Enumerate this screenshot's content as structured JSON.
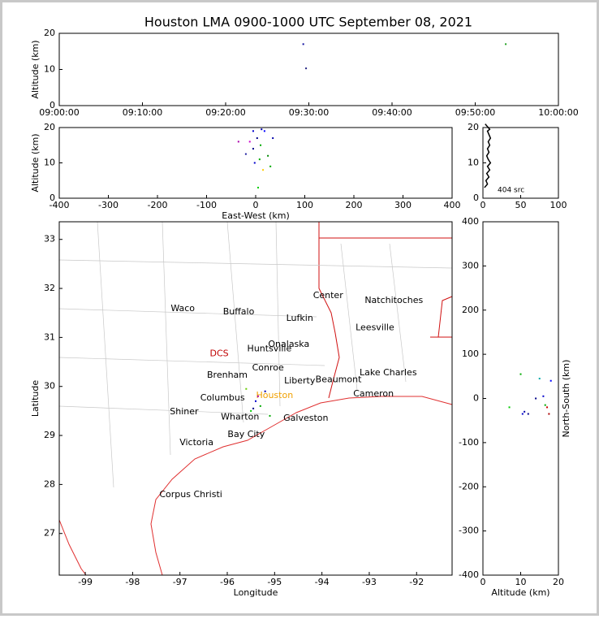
{
  "title": "Houston LMA 0900-1000 UTC September 08, 2021",
  "chart_data": [
    {
      "type": "scatter",
      "ylabel": "Altitude (km)",
      "xlim": [
        "09:00:00",
        "10:00:00"
      ],
      "xticks": [
        "09:00:00",
        "09:10:00",
        "09:20:00",
        "09:30:00",
        "09:40:00",
        "09:50:00",
        "10:00:00"
      ],
      "ylim": [
        0,
        20
      ],
      "yticks": [
        0,
        10,
        20
      ],
      "x": [
        "09:29:20",
        "09:29:40",
        "09:53:40"
      ],
      "values": [
        17,
        10.3,
        17
      ],
      "colors": [
        "#1010a0",
        "#202080",
        "#20a020"
      ]
    },
    {
      "type": "scatter",
      "xlabel": "East-West (km)",
      "ylabel": "Altitude (km)",
      "xlim": [
        -400,
        400
      ],
      "xticks": [
        -400,
        -300,
        -200,
        -100,
        0,
        100,
        200,
        300,
        400
      ],
      "ylim": [
        0,
        20
      ],
      "yticks": [
        0,
        10,
        20
      ],
      "x": [
        -5,
        3,
        -12,
        10,
        18,
        -20,
        -35,
        35,
        30,
        5,
        -5,
        15,
        25,
        -2,
        8,
        12
      ],
      "values": [
        19,
        17,
        16,
        15,
        19,
        12.5,
        16,
        17,
        9,
        3,
        14,
        8,
        12,
        10,
        11,
        19.5
      ],
      "colors": [
        "#0000cc",
        "#000088",
        "#cc00cc",
        "#00aa00",
        "#0000ff",
        "#2020a0",
        "#aa00aa",
        "#0000aa",
        "#00aa00",
        "#00cc00",
        "#000088",
        "#ffcc00",
        "#008800",
        "#0000cc",
        "#00aa00",
        "#0000aa"
      ]
    },
    {
      "type": "line",
      "annotation": "404 src",
      "xlim": [
        0,
        100
      ],
      "xticks": [
        0,
        50,
        100
      ],
      "ylim": [
        0,
        20
      ],
      "yticks": [
        0,
        10,
        20
      ],
      "x": [
        2,
        6,
        4,
        8,
        5,
        9,
        6,
        10,
        7,
        5,
        8,
        6,
        9,
        7,
        10,
        8,
        6,
        9,
        7,
        5,
        3
      ],
      "y": [
        3,
        4,
        5,
        6,
        7,
        8,
        9,
        10,
        11,
        12,
        13,
        14,
        15,
        16,
        17,
        18,
        19,
        19.5,
        20,
        20.5,
        21
      ]
    },
    {
      "type": "map",
      "xlabel": "Longitude",
      "ylabel": "Latitude",
      "xlim": [
        -99.55,
        -91.25
      ],
      "xticks": [
        -99,
        -98,
        -97,
        -96,
        -95,
        -94,
        -93,
        -92
      ],
      "ylim": [
        26.15,
        33.36
      ],
      "yticks": [
        27,
        28,
        29,
        30,
        31,
        32,
        33
      ],
      "cities": [
        {
          "name": "Waco",
          "lon": -96.94,
          "lat": 31.59
        },
        {
          "name": "Buffalo",
          "lon": -95.76,
          "lat": 31.52
        },
        {
          "name": "Center",
          "lon": -93.87,
          "lat": 31.85
        },
        {
          "name": "Natchitoches",
          "lon": -92.48,
          "lat": 31.75
        },
        {
          "name": "Lufkin",
          "lon": -94.47,
          "lat": 31.39
        },
        {
          "name": "Leesville",
          "lon": -92.88,
          "lat": 31.2
        },
        {
          "name": "Huntsville",
          "lon": -95.11,
          "lat": 30.77
        },
        {
          "name": "Onalaska",
          "lon": -94.7,
          "lat": 30.86
        },
        {
          "name": "DCS",
          "lon": -96.17,
          "lat": 30.67
        },
        {
          "name": "Conroe",
          "lon": -95.14,
          "lat": 30.38
        },
        {
          "name": "Brenham",
          "lon": -96.0,
          "lat": 30.23
        },
        {
          "name": "Liberty",
          "lon": -94.47,
          "lat": 30.11
        },
        {
          "name": "Beaumont",
          "lon": -93.65,
          "lat": 30.14
        },
        {
          "name": "Lake Charles",
          "lon": -92.6,
          "lat": 30.28
        },
        {
          "name": "Cameron",
          "lon": -92.91,
          "lat": 29.85
        },
        {
          "name": "Columbus",
          "lon": -96.1,
          "lat": 29.76
        },
        {
          "name": "Houston",
          "lon": -95.0,
          "lat": 29.81
        },
        {
          "name": "Shiner",
          "lon": -96.91,
          "lat": 29.48
        },
        {
          "name": "Wharton",
          "lon": -95.73,
          "lat": 29.37
        },
        {
          "name": "Galveston",
          "lon": -94.34,
          "lat": 29.35
        },
        {
          "name": "Bay City",
          "lon": -95.6,
          "lat": 29.02
        },
        {
          "name": "Victoria",
          "lon": -96.65,
          "lat": 28.85
        },
        {
          "name": "Corpus Christi",
          "lon": -96.77,
          "lat": 27.79
        }
      ],
      "x": [
        -95.4,
        -95.3,
        -95.5,
        -95.2,
        -95.35,
        -95.6,
        -95.1,
        -95.45
      ],
      "values": [
        29.7,
        29.6,
        29.5,
        29.9,
        29.8,
        29.95,
        29.4,
        29.55
      ],
      "colors": [
        "#0000cc",
        "#00aa00",
        "#00cc00",
        "#0000aa",
        "#aa00aa",
        "#66cc00",
        "#00aa00",
        "#000088"
      ]
    },
    {
      "type": "scatter",
      "xlabel": "Altitude (km)",
      "ylabel": "North-South (km)",
      "xlim": [
        0,
        20
      ],
      "xticks": [
        0,
        10,
        20
      ],
      "ylim": [
        -400,
        400
      ],
      "yticks": [
        -400,
        -300,
        -200,
        -100,
        0,
        100,
        200,
        300,
        400
      ],
      "x": [
        10,
        11,
        12,
        16,
        17,
        18,
        15,
        7,
        14,
        17.5,
        10.5,
        16.5
      ],
      "values": [
        55,
        -30,
        -35,
        5,
        -20,
        40,
        45,
        -20,
        0,
        -35,
        -35,
        -15
      ],
      "colors": [
        "#00aa00",
        "#0000aa",
        "#000088",
        "#0000cc",
        "#cc0000",
        "#0000ff",
        "#00aaaa",
        "#00cc00",
        "#000088",
        "#aa0000",
        "#0000cc",
        "#00aa00"
      ]
    }
  ]
}
